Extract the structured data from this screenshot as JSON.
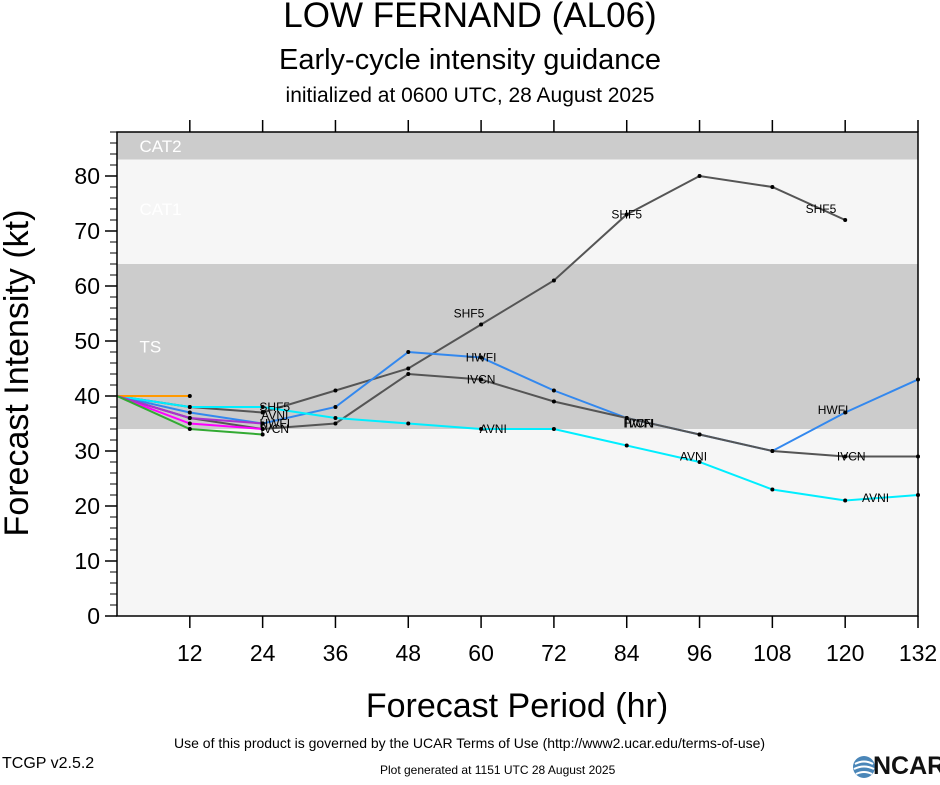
{
  "header": {
    "title": "LOW FERNAND (AL06)",
    "subtitle": "Early-cycle intensity guidance",
    "init_line": "initialized at 0600 UTC, 28 August 2025"
  },
  "footer": {
    "terms": "Use of this product is governed by the UCAR Terms of Use (http://www2.ucar.edu/terms-of-use)",
    "version": "TCGP v2.5.2",
    "generated": "Plot generated at 1151 UTC   28 August 2025",
    "logo_text": "NCAR"
  },
  "chart_data": {
    "type": "line",
    "title": "LOW FERNAND (AL06)",
    "xlabel": "Forecast Period (hr)",
    "ylabel": "Forecast Intensity (kt)",
    "xlim": [
      0,
      132
    ],
    "ylim": [
      0,
      88
    ],
    "x_ticks": [
      12,
      24,
      36,
      48,
      60,
      72,
      84,
      96,
      108,
      120,
      132
    ],
    "y_ticks": [
      0,
      10,
      20,
      30,
      40,
      50,
      60,
      70,
      80
    ],
    "grid": false,
    "bands": [
      {
        "label": "TS",
        "from": 34,
        "to": 64,
        "color": "#cccccc",
        "label_y": 49
      },
      {
        "label": "CAT1",
        "from": 64,
        "to": 83,
        "color": "#f6f6f6",
        "label_y": 74
      },
      {
        "label": "CAT2",
        "from": 83,
        "to": 88,
        "color": "#cccccc",
        "label_y": 85.5
      }
    ],
    "below_band_color": "#f6f6f6",
    "series": [
      {
        "name": "SHF5",
        "color": "#555555",
        "x": [
          0,
          12,
          24,
          36,
          48,
          60,
          72,
          84,
          96,
          108,
          120
        ],
        "y": [
          40,
          38,
          37,
          41,
          45,
          53,
          61,
          73,
          80,
          78,
          72
        ],
        "labels": [
          [
            26,
            38
          ],
          [
            58,
            55
          ],
          [
            84,
            73
          ],
          [
            116,
            74
          ]
        ]
      },
      {
        "name": "HWFI",
        "color": "#3388ee",
        "x": [
          0,
          12,
          24,
          36,
          48,
          60,
          72,
          84,
          96,
          108,
          120,
          132
        ],
        "y": [
          40,
          37,
          35,
          38,
          48,
          47,
          41,
          36,
          33,
          30,
          37,
          43
        ],
        "labels": [
          [
            26,
            35
          ],
          [
            60,
            47
          ],
          [
            86,
            35
          ],
          [
            118,
            37.5
          ]
        ]
      },
      {
        "name": "IVCN",
        "color": "#555555",
        "x": [
          0,
          12,
          24,
          36,
          48,
          60,
          72,
          84,
          96,
          108,
          120,
          132
        ],
        "y": [
          40,
          36,
          34,
          35,
          44,
          43,
          39,
          36,
          33,
          30,
          29,
          29
        ],
        "labels": [
          [
            26,
            34
          ],
          [
            60,
            43
          ],
          [
            86,
            35
          ],
          [
            121,
            29
          ]
        ]
      },
      {
        "name": "AVNI",
        "color": "#00eeff",
        "x": [
          0,
          12,
          24,
          36,
          48,
          60,
          72,
          84,
          96,
          108,
          120,
          132
        ],
        "y": [
          40,
          38,
          38,
          36,
          35,
          34,
          34,
          31,
          28,
          23,
          21,
          22
        ],
        "labels": [
          [
            26,
            36.5
          ],
          [
            62,
            34
          ],
          [
            95,
            29
          ],
          [
            125,
            21.5
          ]
        ]
      },
      {
        "name": "",
        "color": "#ff9900",
        "x": [
          0,
          12
        ],
        "y": [
          40,
          40
        ],
        "labels": []
      },
      {
        "name": "",
        "color": "#ff00ff",
        "x": [
          0,
          12,
          24
        ],
        "y": [
          40,
          35,
          34
        ],
        "labels": []
      },
      {
        "name": "",
        "color": "#aa33cc",
        "x": [
          0,
          12,
          24
        ],
        "y": [
          40,
          36,
          35
        ],
        "labels": []
      },
      {
        "name": "",
        "color": "#33aa33",
        "x": [
          0,
          12,
          24
        ],
        "y": [
          40,
          34,
          33
        ],
        "labels": []
      }
    ]
  }
}
